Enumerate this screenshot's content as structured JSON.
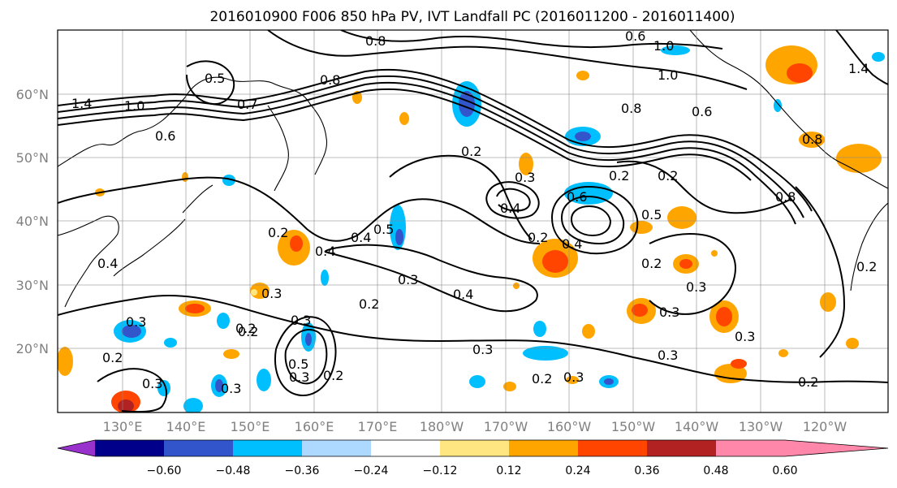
{
  "title": "2016010900 F006 850 hPa PV, IVT Landfall PC (2016011200 - 2016011400)",
  "lat_labels": [
    "60°N",
    "50°N",
    "40°N",
    "30°N",
    "20°N"
  ],
  "lon_labels": [
    "130°E",
    "140°E",
    "150°E",
    "160°E",
    "170°E",
    "180°W",
    "170°W",
    "160°W",
    "150°W",
    "140°W",
    "130°W",
    "120°W"
  ],
  "colorbar": {
    "tick_labels": [
      "−0.60",
      "−0.48",
      "−0.36",
      "−0.24",
      "−0.12",
      "0.12",
      "0.24",
      "0.36",
      "0.48",
      "0.60"
    ],
    "colors": [
      "#9932CC",
      "#00008B",
      "#3355CC",
      "#00BFFF",
      "#ADD8FF",
      "#FFFFFF",
      "#FFE680",
      "#FFA500",
      "#FF4500",
      "#B22222",
      "#FF88AA"
    ]
  },
  "contour_labels": [
    "1.4",
    "1.0",
    "0.6",
    "0.7",
    "0.8",
    "0.8",
    "0.6",
    "1.0",
    "0.5",
    "0.6",
    "1.0",
    "1.4",
    "0.8",
    "0.2",
    "0.2",
    "0.6",
    "0.3",
    "0.2",
    "0.2",
    "0.3",
    "0.4",
    "0.4",
    "0.5",
    "0.4",
    "0.3",
    "0.4",
    "0.4",
    "0.2",
    "0.2",
    "0.3",
    "0.4",
    "0.3",
    "0.2",
    "0.5",
    "0.3",
    "0.2",
    "0.3",
    "0.3",
    "0.2",
    "0.3",
    "0.3",
    "0.2",
    "0.3",
    "0.2",
    "0.3",
    "0.3",
    "0.2",
    "0.2",
    "0.3",
    "0.8",
    "0.8",
    "0.5",
    "0.2"
  ]
}
